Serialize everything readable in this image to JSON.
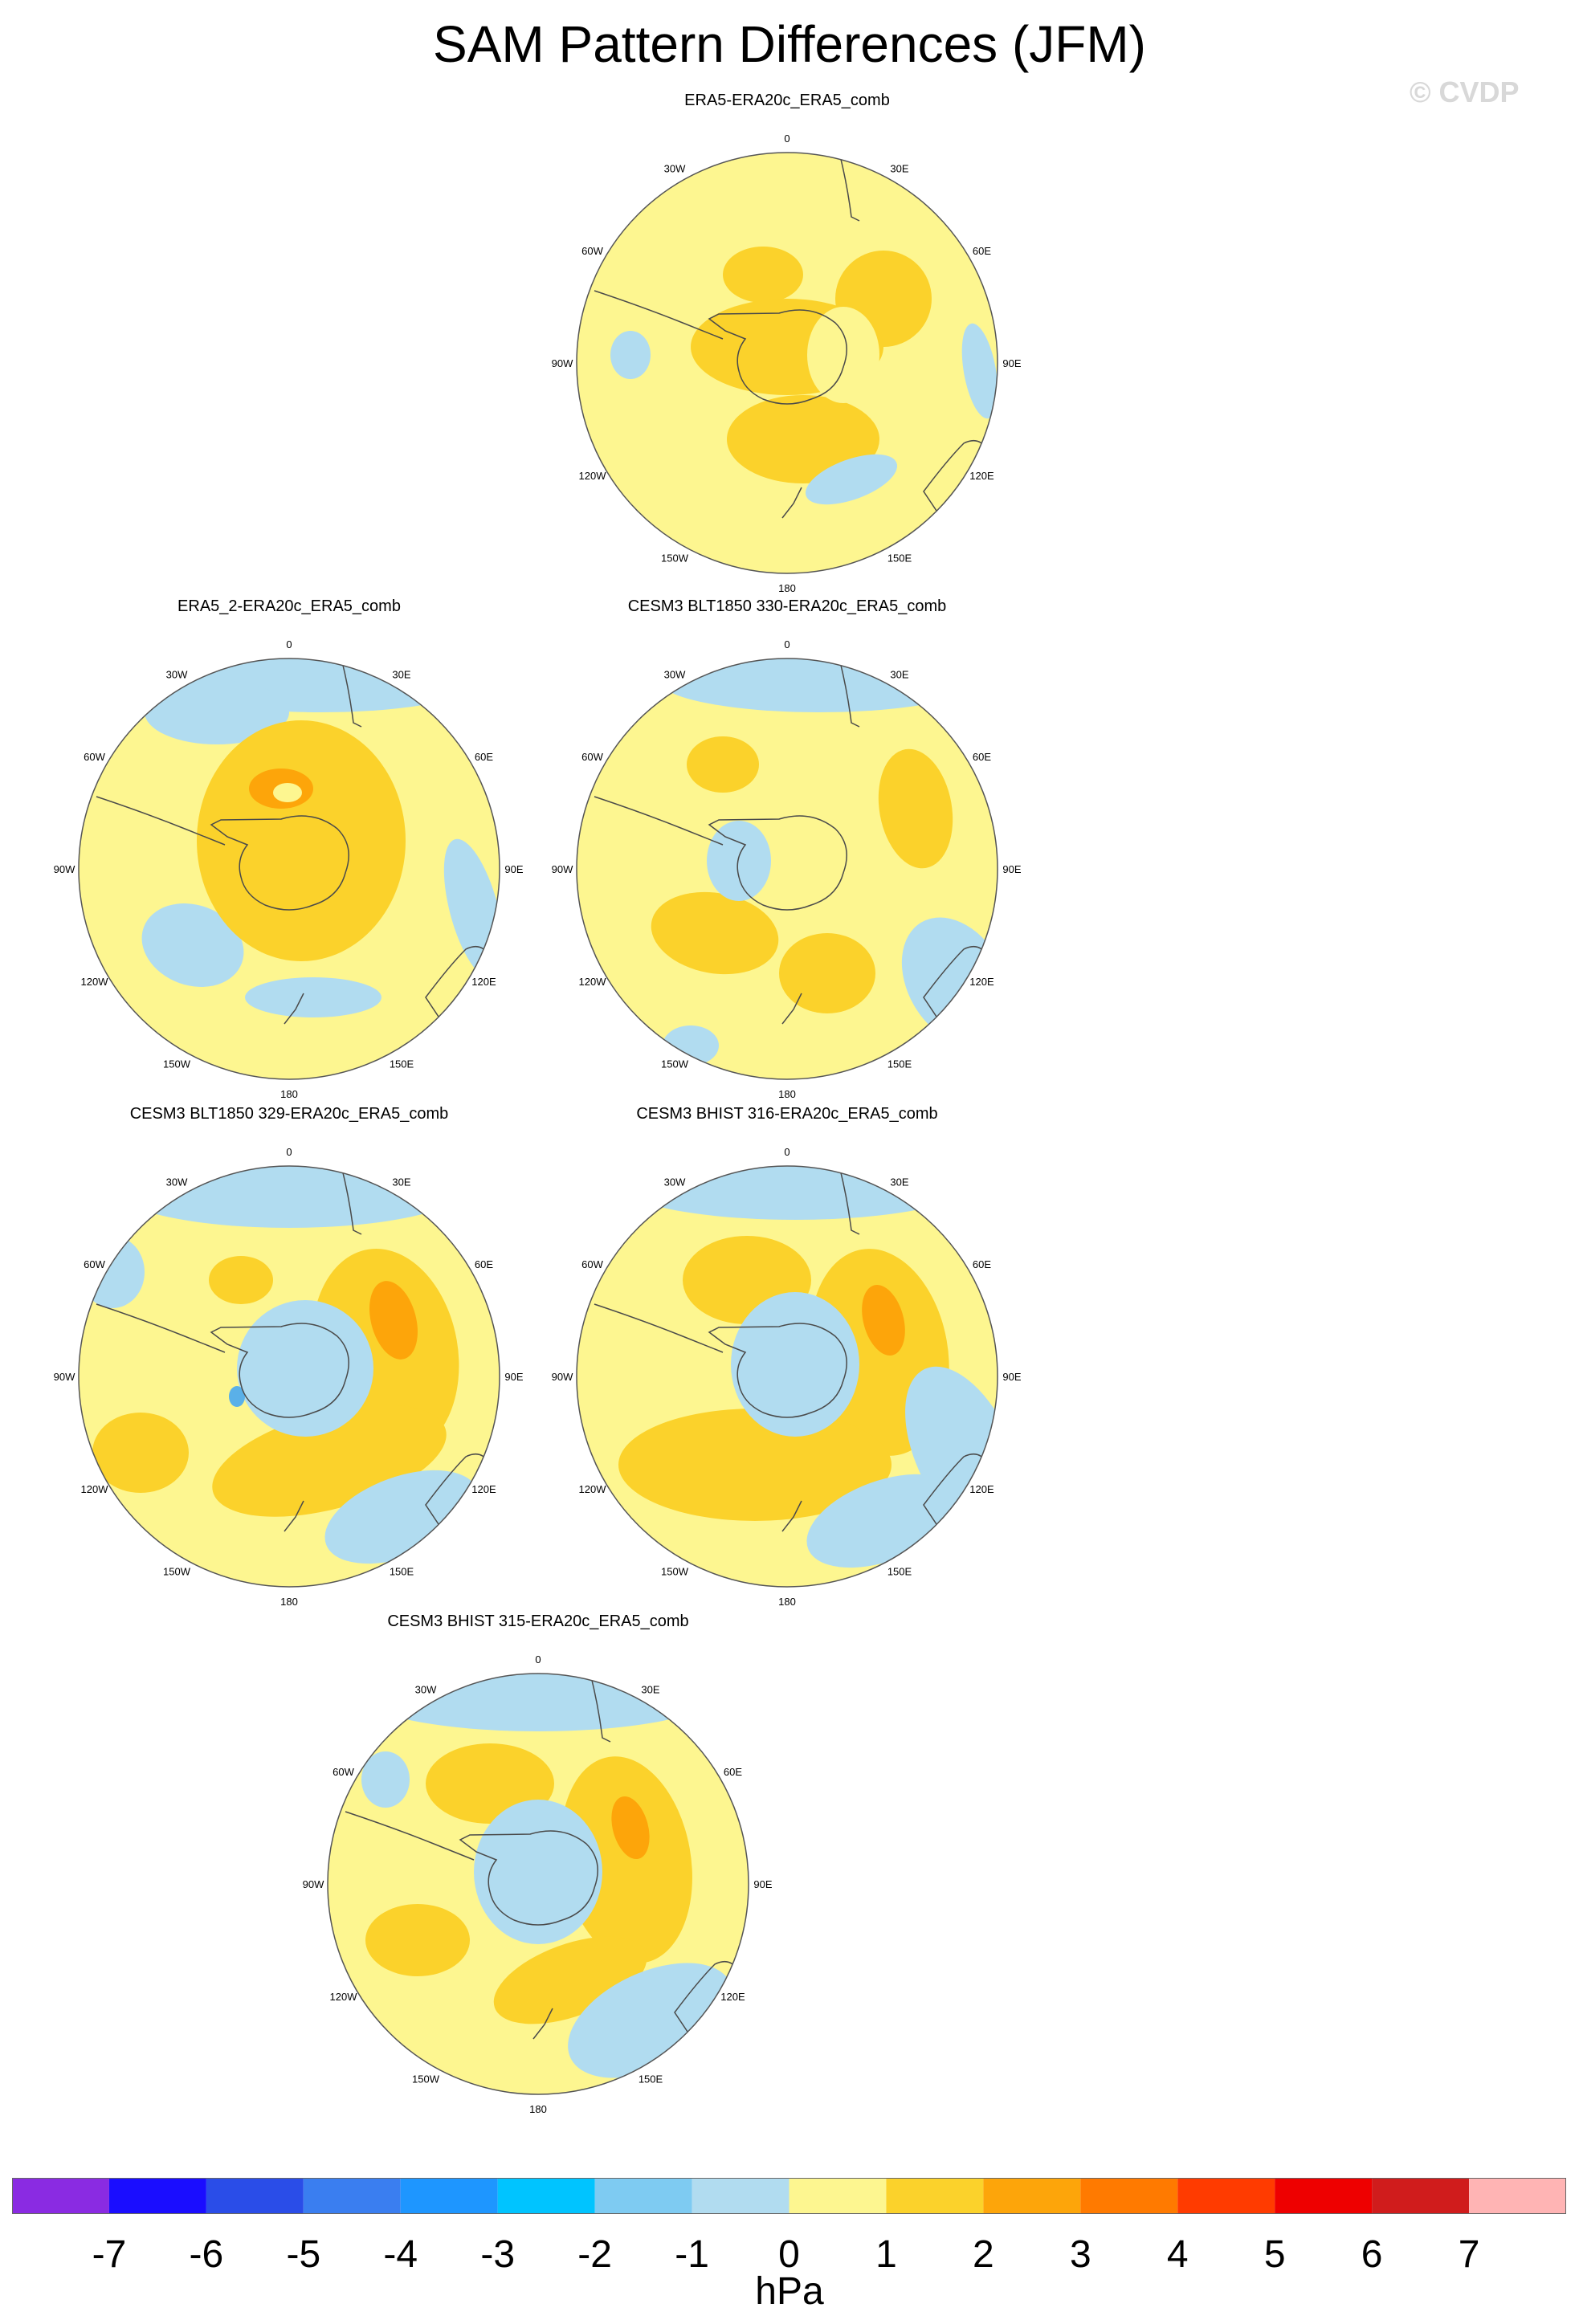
{
  "title": "SAM Pattern Differences (JFM)",
  "watermark": "© CVDP",
  "colors": {
    "land_outline": "#4a4a4a",
    "frame": "#555555",
    "base": "#fdf690",
    "pos1": "#fbd22b",
    "pos2": "#fda50a",
    "neg1": "#b1dcf0",
    "neg2": "#5ab0e8"
  },
  "lon_labels": [
    "0",
    "30E",
    "60E",
    "90E",
    "120E",
    "150E",
    "180",
    "150W",
    "120W",
    "90W",
    "60W",
    "30W"
  ],
  "panels": [
    {
      "id": "p1",
      "title": "ERA5-ERA20c_ERA5_comb",
      "max_level": "1 to 2 hPa",
      "min_level": "-1 to -2 hPa"
    },
    {
      "id": "p2",
      "title": "ERA5_2-ERA20c_ERA5_comb",
      "max_level": "1 to 2 hPa",
      "min_level": "-1 to -2 hPa"
    },
    {
      "id": "p3",
      "title": "CESM3 BLT1850 330-ERA20c_ERA5_comb",
      "max_level": "1 to 2 hPa",
      "min_level": "-1 to -2 hPa"
    },
    {
      "id": "p4",
      "title": "CESM3 BLT1850 329-ERA20c_ERA5_comb",
      "max_level": "2 to 3 hPa",
      "min_level": "-2 to -3 hPa"
    },
    {
      "id": "p5",
      "title": "CESM3 BHIST 316-ERA20c_ERA5_comb",
      "max_level": "2 to 3 hPa",
      "min_level": "-1 to -2 hPa"
    },
    {
      "id": "p6",
      "title": "CESM3 BHIST 315-ERA20c_ERA5_comb",
      "max_level": "2 to 3 hPa",
      "min_level": "-1 to -2 hPa"
    }
  ],
  "colorbar": {
    "units": "hPa",
    "labels": [
      "-7",
      "-6",
      "-5",
      "-4",
      "-3",
      "-2",
      "-1",
      "0",
      "1",
      "2",
      "3",
      "4",
      "5",
      "6",
      "7"
    ],
    "colors": [
      "#8a2be2",
      "#1a0dff",
      "#2a4de8",
      "#3a7ef0",
      "#1e96ff",
      "#00c4ff",
      "#7ecbf2",
      "#b1dcf0",
      "#fdf690",
      "#fbd22b",
      "#fda50a",
      "#ff7a00",
      "#ff3b00",
      "#ee0000",
      "#d01c1c",
      "#ffb4b4"
    ]
  }
}
